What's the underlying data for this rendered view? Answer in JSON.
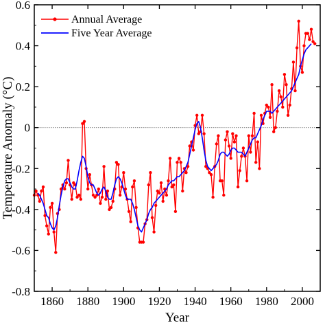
{
  "chart_data": {
    "type": "line",
    "xlabel": "Year",
    "ylabel": "Temperature Anomaly (°C)",
    "xlim": [
      1850,
      2010
    ],
    "ylim": [
      -0.8,
      0.6
    ],
    "xticks": [
      1860,
      1880,
      1900,
      1920,
      1940,
      1960,
      1980,
      2000
    ],
    "yticks": [
      -0.8,
      -0.6,
      -0.4,
      -0.2,
      0,
      0.2,
      0.4,
      0.6
    ],
    "xtick_labels": [
      "1860",
      "1880",
      "1900",
      "1920",
      "1940",
      "1960",
      "1980",
      "2000"
    ],
    "ytick_labels": [
      "-0.8",
      "-0.6",
      "-0.4",
      "-0.2",
      "0",
      "0.2",
      "0.4",
      "0.6"
    ],
    "grid": false,
    "zero_line": true,
    "legend_position": "top-left",
    "series": [
      {
        "name": "Annual Average",
        "color": "#ff0000",
        "marker": "circle",
        "x": [
          1850,
          1851,
          1852,
          1853,
          1854,
          1855,
          1856,
          1857,
          1858,
          1859,
          1860,
          1861,
          1862,
          1863,
          1864,
          1865,
          1866,
          1867,
          1868,
          1869,
          1870,
          1871,
          1872,
          1873,
          1874,
          1875,
          1876,
          1877,
          1878,
          1879,
          1880,
          1881,
          1882,
          1883,
          1884,
          1885,
          1886,
          1887,
          1888,
          1889,
          1890,
          1891,
          1892,
          1893,
          1894,
          1895,
          1896,
          1897,
          1898,
          1899,
          1900,
          1901,
          1902,
          1903,
          1904,
          1905,
          1906,
          1907,
          1908,
          1909,
          1910,
          1911,
          1912,
          1913,
          1914,
          1915,
          1916,
          1917,
          1918,
          1919,
          1920,
          1921,
          1922,
          1923,
          1924,
          1925,
          1926,
          1927,
          1928,
          1929,
          1930,
          1931,
          1932,
          1933,
          1934,
          1935,
          1936,
          1937,
          1938,
          1939,
          1940,
          1941,
          1942,
          1943,
          1944,
          1945,
          1946,
          1947,
          1948,
          1949,
          1950,
          1951,
          1952,
          1953,
          1954,
          1955,
          1956,
          1957,
          1958,
          1959,
          1960,
          1961,
          1962,
          1963,
          1964,
          1965,
          1966,
          1967,
          1968,
          1969,
          1970,
          1971,
          1972,
          1973,
          1974,
          1975,
          1976,
          1977,
          1978,
          1979,
          1980,
          1981,
          1982,
          1983,
          1984,
          1985,
          1986,
          1987,
          1988,
          1989,
          1990,
          1991,
          1992,
          1993,
          1994,
          1995,
          1996,
          1997,
          1998,
          1999,
          2000,
          2001,
          2002,
          2003,
          2004,
          2005,
          2006,
          2007
        ],
        "values": [
          -0.33,
          -0.31,
          -0.33,
          -0.36,
          -0.31,
          -0.29,
          -0.43,
          -0.48,
          -0.52,
          -0.39,
          -0.37,
          -0.51,
          -0.61,
          -0.42,
          -0.4,
          -0.3,
          -0.28,
          -0.3,
          -0.27,
          -0.16,
          -0.28,
          -0.35,
          -0.27,
          -0.28,
          -0.34,
          -0.33,
          -0.35,
          0.02,
          0.03,
          -0.2,
          -0.3,
          -0.23,
          -0.28,
          -0.33,
          -0.34,
          -0.33,
          -0.3,
          -0.37,
          -0.34,
          -0.19,
          -0.35,
          -0.31,
          -0.4,
          -0.39,
          -0.36,
          -0.3,
          -0.17,
          -0.18,
          -0.33,
          -0.29,
          -0.22,
          -0.3,
          -0.35,
          -0.41,
          -0.46,
          -0.29,
          -0.26,
          -0.39,
          -0.49,
          -0.56,
          -0.56,
          -0.56,
          -0.47,
          -0.45,
          -0.28,
          -0.22,
          -0.44,
          -0.51,
          -0.38,
          -0.31,
          -0.32,
          -0.27,
          -0.36,
          -0.3,
          -0.33,
          -0.26,
          -0.15,
          -0.29,
          -0.28,
          -0.41,
          -0.17,
          -0.15,
          -0.17,
          -0.31,
          -0.2,
          -0.22,
          -0.19,
          -0.09,
          -0.07,
          -0.11,
          0.01,
          0.06,
          -0.03,
          -0.02,
          0.06,
          -0.03,
          -0.19,
          -0.2,
          -0.22,
          -0.23,
          -0.34,
          -0.19,
          -0.08,
          -0.04,
          -0.26,
          -0.26,
          -0.33,
          -0.06,
          -0.02,
          -0.09,
          -0.15,
          -0.03,
          -0.07,
          -0.04,
          -0.29,
          -0.21,
          -0.14,
          -0.1,
          -0.14,
          -0.26,
          -0.04,
          -0.12,
          -0.04,
          0.07,
          -0.17,
          -0.07,
          -0.2,
          0.06,
          0.02,
          0.07,
          0.11,
          0.1,
          0.05,
          0.21,
          -0.02,
          0.0,
          0.08,
          0.18,
          0.15,
          0.1,
          0.26,
          0.21,
          0.06,
          0.11,
          0.19,
          0.32,
          0.18,
          0.39,
          0.52,
          0.3,
          0.27,
          0.4,
          0.46,
          0.46,
          0.43,
          0.48,
          0.42,
          0.41
        ]
      },
      {
        "name": "Five Year Average",
        "color": "#0000ff",
        "x": [
          1852,
          1853,
          1854,
          1855,
          1856,
          1857,
          1858,
          1859,
          1860,
          1861,
          1862,
          1863,
          1864,
          1865,
          1866,
          1867,
          1868,
          1869,
          1870,
          1871,
          1872,
          1873,
          1874,
          1875,
          1876,
          1877,
          1878,
          1879,
          1880,
          1881,
          1882,
          1883,
          1884,
          1885,
          1886,
          1887,
          1888,
          1889,
          1890,
          1891,
          1892,
          1893,
          1894,
          1895,
          1896,
          1897,
          1898,
          1899,
          1900,
          1901,
          1902,
          1903,
          1904,
          1905,
          1906,
          1907,
          1908,
          1909,
          1910,
          1911,
          1912,
          1913,
          1914,
          1915,
          1916,
          1917,
          1918,
          1919,
          1920,
          1921,
          1922,
          1923,
          1924,
          1925,
          1926,
          1927,
          1928,
          1929,
          1930,
          1931,
          1932,
          1933,
          1934,
          1935,
          1936,
          1937,
          1938,
          1939,
          1940,
          1941,
          1942,
          1943,
          1944,
          1945,
          1946,
          1947,
          1948,
          1949,
          1950,
          1951,
          1952,
          1953,
          1954,
          1955,
          1956,
          1957,
          1958,
          1959,
          1960,
          1961,
          1962,
          1963,
          1964,
          1965,
          1966,
          1967,
          1968,
          1969,
          1970,
          1971,
          1972,
          1973,
          1974,
          1975,
          1976,
          1977,
          1978,
          1979,
          1980,
          1981,
          1982,
          1983,
          1984,
          1985,
          1986,
          1987,
          1988,
          1989,
          1990,
          1991,
          1992,
          1993,
          1994,
          1995,
          1996,
          1997,
          1998,
          1999,
          2000,
          2001,
          2002,
          2003,
          2004,
          2005
        ],
        "values": [
          -0.32,
          -0.33,
          -0.35,
          -0.37,
          -0.4,
          -0.43,
          -0.44,
          -0.47,
          -0.49,
          -0.5,
          -0.48,
          -0.44,
          -0.38,
          -0.33,
          -0.29,
          -0.26,
          -0.25,
          -0.25,
          -0.27,
          -0.29,
          -0.3,
          -0.3,
          -0.26,
          -0.21,
          -0.17,
          -0.14,
          -0.15,
          -0.19,
          -0.24,
          -0.27,
          -0.28,
          -0.28,
          -0.3,
          -0.32,
          -0.33,
          -0.32,
          -0.3,
          -0.29,
          -0.31,
          -0.34,
          -0.35,
          -0.35,
          -0.32,
          -0.28,
          -0.25,
          -0.24,
          -0.25,
          -0.27,
          -0.3,
          -0.33,
          -0.35,
          -0.35,
          -0.35,
          -0.37,
          -0.4,
          -0.44,
          -0.48,
          -0.5,
          -0.51,
          -0.49,
          -0.47,
          -0.45,
          -0.42,
          -0.4,
          -0.39,
          -0.37,
          -0.36,
          -0.35,
          -0.34,
          -0.33,
          -0.32,
          -0.31,
          -0.3,
          -0.28,
          -0.27,
          -0.26,
          -0.26,
          -0.25,
          -0.24,
          -0.24,
          -0.23,
          -0.22,
          -0.21,
          -0.19,
          -0.17,
          -0.13,
          -0.09,
          -0.05,
          -0.01,
          0.02,
          0.03,
          0.0,
          -0.05,
          -0.11,
          -0.16,
          -0.19,
          -0.2,
          -0.21,
          -0.2,
          -0.19,
          -0.18,
          -0.16,
          -0.13,
          -0.12,
          -0.12,
          -0.13,
          -0.14,
          -0.13,
          -0.11,
          -0.1,
          -0.1,
          -0.11,
          -0.12,
          -0.12,
          -0.12,
          -0.13,
          -0.14,
          -0.12,
          -0.1,
          -0.08,
          -0.06,
          -0.05,
          -0.05,
          -0.03,
          -0.01,
          0.01,
          0.04,
          0.06,
          0.08,
          0.08,
          0.08,
          0.07,
          0.08,
          0.09,
          0.1,
          0.11,
          0.12,
          0.13,
          0.14,
          0.15,
          0.16,
          0.17,
          0.18,
          0.2,
          0.22,
          0.24,
          0.26,
          0.3,
          0.33,
          0.36,
          0.38,
          0.39,
          0.4,
          0.41
        ]
      }
    ]
  }
}
